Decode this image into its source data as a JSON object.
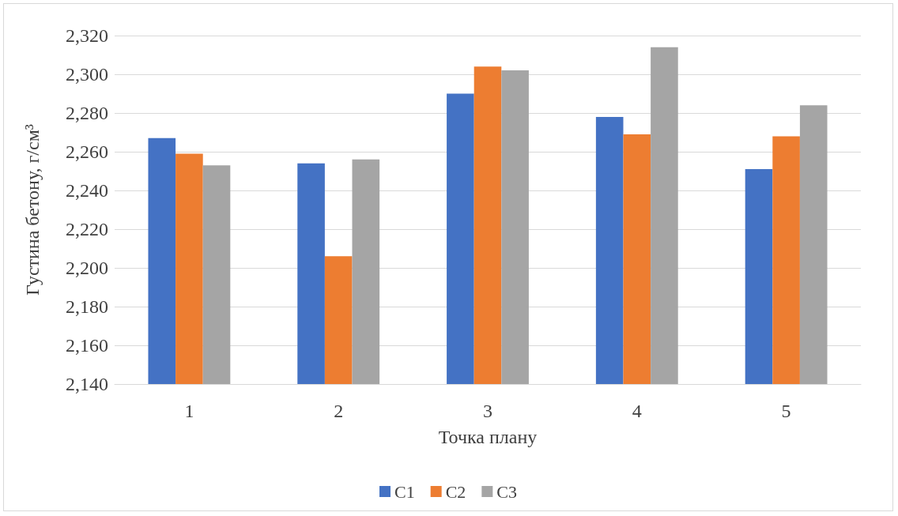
{
  "chart_data": {
    "type": "bar",
    "xlabel": "Точка плану",
    "ylabel": "Густина бетону, г/см³",
    "categories": [
      "1",
      "2",
      "3",
      "4",
      "5"
    ],
    "series": [
      {
        "name": "C1",
        "color": "#4472c4",
        "values": [
          2267,
          2254,
          2290,
          2278,
          2251
        ]
      },
      {
        "name": "C2",
        "color": "#ed7d31",
        "values": [
          2259,
          2206,
          2304,
          2269,
          2268
        ]
      },
      {
        "name": "C3",
        "color": "#a5a5a5",
        "values": [
          2253,
          2256,
          2302,
          2314,
          2284
        ]
      }
    ],
    "ylim": [
      2140,
      2320
    ],
    "yticks": [
      {
        "value": 2140,
        "label": "2,140"
      },
      {
        "value": 2160,
        "label": "2,160"
      },
      {
        "value": 2180,
        "label": "2,180"
      },
      {
        "value": 2200,
        "label": "2,200"
      },
      {
        "value": 2220,
        "label": "2,220"
      },
      {
        "value": 2240,
        "label": "2,240"
      },
      {
        "value": 2260,
        "label": "2,260"
      },
      {
        "value": 2280,
        "label": "2,280"
      },
      {
        "value": 2300,
        "label": "2,300"
      },
      {
        "value": 2320,
        "label": "2,320"
      }
    ],
    "grid": "y",
    "legend": "bottom"
  }
}
